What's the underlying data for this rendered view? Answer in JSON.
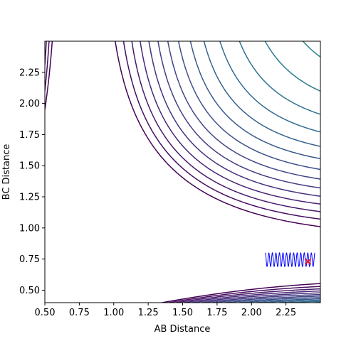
{
  "chart_data": {
    "type": "contour",
    "title": "",
    "xlabel": "AB Distance",
    "ylabel": "BC Distance",
    "xlim": [
      0.5,
      2.5
    ],
    "ylim": [
      0.4,
      2.5
    ],
    "xticks": [
      0.5,
      0.75,
      1.0,
      1.25,
      1.5,
      1.75,
      2.0,
      2.25
    ],
    "yticks": [
      0.5,
      0.75,
      1.0,
      1.25,
      1.5,
      1.75,
      2.0,
      2.25
    ],
    "xtick_labels": [
      "0.50",
      "0.75",
      "1.00",
      "1.25",
      "1.50",
      "1.75",
      "2.00",
      "2.25"
    ],
    "ytick_labels": [
      "0.50",
      "0.75",
      "1.00",
      "1.25",
      "1.50",
      "1.75",
      "2.00",
      "2.25"
    ],
    "grid": false,
    "colormap": "viridis",
    "contour_level_count": 30,
    "trajectory": {
      "color": "#0000ff",
      "x_range": [
        2.1,
        2.46
      ],
      "y_range": [
        0.69,
        0.8
      ]
    },
    "end_marker": {
      "x": 2.41,
      "y": 0.73,
      "color": "#ff0000",
      "symbol": "x"
    }
  }
}
